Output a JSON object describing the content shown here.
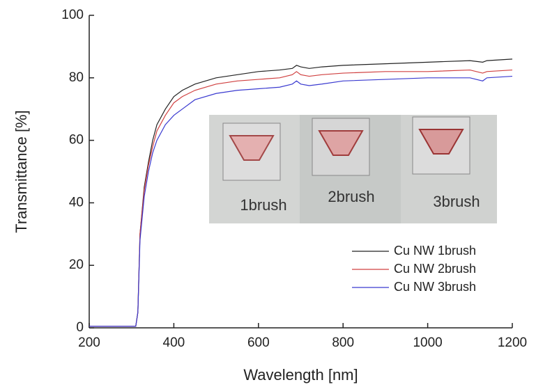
{
  "chart_data": {
    "type": "line",
    "x_label": "Wavelength [nm]",
    "y_label": "Transmittance [%]",
    "x": [
      200,
      300,
      310,
      315,
      320,
      330,
      340,
      350,
      360,
      380,
      400,
      420,
      450,
      500,
      550,
      600,
      650,
      680,
      690,
      700,
      720,
      750,
      800,
      900,
      1000,
      1100,
      1130,
      1140,
      1200
    ],
    "series": [
      {
        "name": "Cu NW 1brush",
        "color": "#222222",
        "values": [
          0.5,
          0.5,
          0.5,
          5,
          30,
          45,
          53,
          60,
          65,
          70,
          74,
          76,
          78,
          80,
          81,
          82,
          82.5,
          83,
          84,
          83.5,
          83,
          83.5,
          84,
          84.5,
          85,
          85.5,
          85,
          85.5,
          86
        ]
      },
      {
        "name": "Cu NW 2brush",
        "color": "#d04040",
        "values": [
          0.5,
          0.5,
          0.5,
          5,
          30,
          44,
          52,
          58,
          63,
          68,
          72,
          74,
          76,
          78,
          79,
          79.5,
          80,
          81,
          82,
          81,
          80.5,
          81,
          81.5,
          82,
          82,
          82.5,
          81.5,
          82,
          82.5
        ]
      },
      {
        "name": "Cu NW 3brush",
        "color": "#3a3ad0",
        "values": [
          0.5,
          0.5,
          0.5,
          5,
          28,
          42,
          50,
          56,
          60,
          65,
          68,
          70,
          73,
          75,
          76,
          76.5,
          77,
          78,
          79,
          78,
          77.5,
          78,
          79,
          79.5,
          80,
          80,
          79,
          80,
          80.5
        ]
      }
    ],
    "xlim": [
      200,
      1200
    ],
    "xticks": [
      200,
      400,
      600,
      800,
      1000,
      1200
    ],
    "ylim": [
      0,
      100
    ],
    "yticks": [
      0,
      20,
      40,
      60,
      80,
      100
    ],
    "legend": "lower right",
    "annotations": [
      "1brush",
      "2brush",
      "3brush"
    ]
  }
}
